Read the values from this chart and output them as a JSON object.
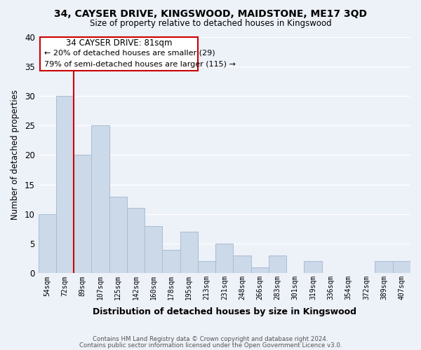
{
  "title": "34, CAYSER DRIVE, KINGSWOOD, MAIDSTONE, ME17 3QD",
  "subtitle": "Size of property relative to detached houses in Kingswood",
  "xlabel": "Distribution of detached houses by size in Kingswood",
  "ylabel": "Number of detached properties",
  "bar_labels": [
    "54sqm",
    "72sqm",
    "89sqm",
    "107sqm",
    "125sqm",
    "142sqm",
    "160sqm",
    "178sqm",
    "195sqm",
    "213sqm",
    "231sqm",
    "248sqm",
    "266sqm",
    "283sqm",
    "301sqm",
    "319sqm",
    "336sqm",
    "354sqm",
    "372sqm",
    "389sqm",
    "407sqm"
  ],
  "bar_values": [
    10,
    30,
    20,
    25,
    13,
    11,
    8,
    4,
    7,
    2,
    5,
    3,
    1,
    3,
    0,
    2,
    0,
    0,
    0,
    2,
    2
  ],
  "bar_color": "#ccd9e8",
  "bar_edge_color": "#a8bdd4",
  "ylim": [
    0,
    40
  ],
  "yticks": [
    0,
    5,
    10,
    15,
    20,
    25,
    30,
    35,
    40
  ],
  "vline_x": 1.5,
  "vline_color": "#cc0000",
  "annotation_title": "34 CAYSER DRIVE: 81sqm",
  "annotation_line1": "← 20% of detached houses are smaller (29)",
  "annotation_line2": "79% of semi-detached houses are larger (115) →",
  "annotation_box_color": "#ffffff",
  "annotation_box_edge": "#cc0000",
  "footer1": "Contains HM Land Registry data © Crown copyright and database right 2024.",
  "footer2": "Contains public sector information licensed under the Open Government Licence v3.0.",
  "background_color": "#edf1f8",
  "grid_color": "#ffffff",
  "title_fontsize": 10.5,
  "subtitle_fontsize": 9.5
}
